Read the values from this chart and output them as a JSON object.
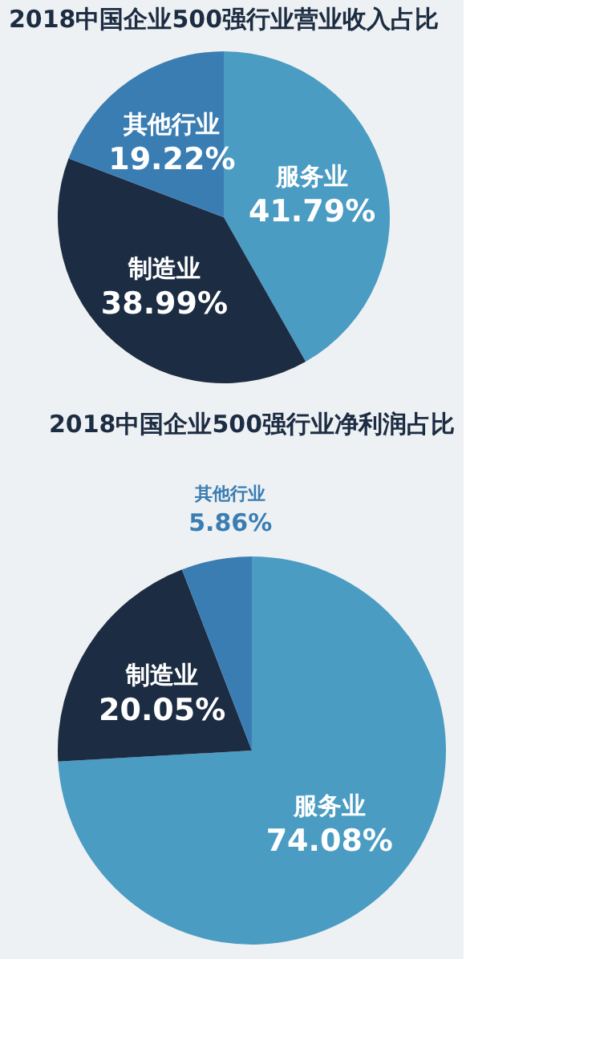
{
  "chart_data": [
    {
      "type": "pie",
      "title": "2018中国企业500强行业营业收入占比",
      "categories": [
        "服务业",
        "制造业",
        "其他行业"
      ],
      "values": [
        41.79,
        38.99,
        19.22
      ],
      "colors": [
        "#4a9cc3",
        "#1c2c42",
        "#3a7db3"
      ],
      "value_labels": [
        "41.79%",
        "38.99%",
        "19.22%"
      ]
    },
    {
      "type": "pie",
      "title": "2018中国企业500强行业净利润占比",
      "categories": [
        "服务业",
        "制造业",
        "其他行业"
      ],
      "values": [
        74.08,
        20.05,
        5.86
      ],
      "colors": [
        "#4a9cc3",
        "#1c2c42",
        "#3a7db3"
      ],
      "value_labels": [
        "74.08%",
        "20.05%",
        "5.86%"
      ]
    }
  ]
}
